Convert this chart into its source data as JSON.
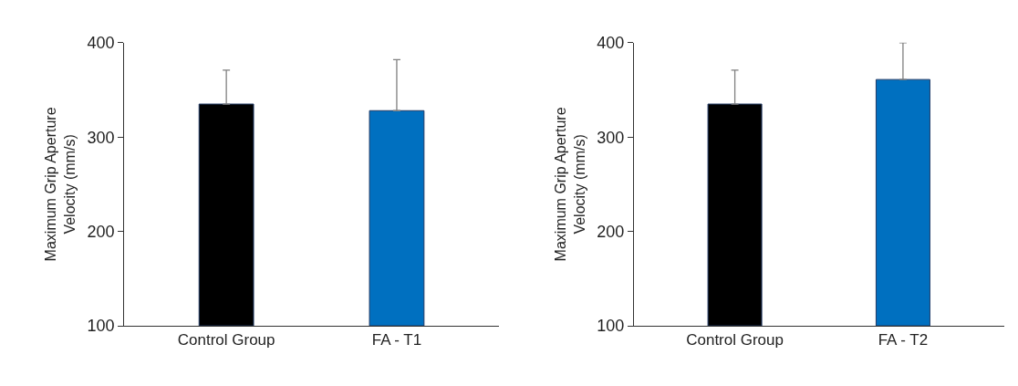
{
  "chart_data": [
    {
      "type": "bar",
      "ylabel": "Maximum Grip Aperture\nVelocity (mm/s)",
      "categories": [
        "Control Group",
        "FA - T1"
      ],
      "values": [
        335,
        328
      ],
      "colors": [
        "#000000",
        "#0070c0"
      ],
      "errors": [
        [
          335,
          371
        ],
        [
          328,
          382
        ]
      ],
      "ylim": [
        100,
        400
      ],
      "yticks": [
        100,
        200,
        300,
        400
      ]
    },
    {
      "type": "bar",
      "ylabel": "Maximum Grip Aperture\nVelocity (mm/s)",
      "categories": [
        "Control Group",
        "FA - T2"
      ],
      "values": [
        335,
        361
      ],
      "colors": [
        "#000000",
        "#0070c0"
      ],
      "errors": [
        [
          335,
          371
        ],
        [
          361,
          400
        ]
      ],
      "ylim": [
        100,
        400
      ],
      "yticks": [
        100,
        200,
        300,
        400
      ]
    }
  ]
}
